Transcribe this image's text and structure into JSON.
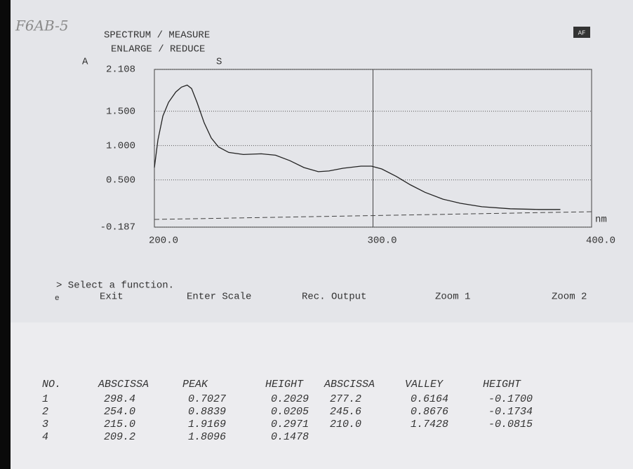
{
  "handwriting": "F6AB-5",
  "header": {
    "line1": "SPECTRUM / MEASURE",
    "line2": "ENLARGE / REDUCE",
    "badge": "AF"
  },
  "chart_data": {
    "type": "line",
    "y_label": "A",
    "x_label": "nm",
    "marker": "S",
    "x": [
      200,
      201.6,
      203.9,
      206.5,
      209.8,
      212.4,
      215,
      217,
      219.5,
      222.8,
      226,
      229.3,
      234,
      240.7,
      248.9,
      255.4,
      262,
      268.4,
      275,
      279.8,
      286.3,
      294.5,
      299.3,
      304,
      310.7,
      317,
      323.8,
      332,
      340,
      349.8,
      362.8,
      375.9,
      385.7
    ],
    "y": [
      0.68,
      1.08,
      1.43,
      1.63,
      1.78,
      1.85,
      1.88,
      1.83,
      1.63,
      1.33,
      1.11,
      0.98,
      0.9,
      0.87,
      0.88,
      0.86,
      0.78,
      0.68,
      0.62,
      0.63,
      0.67,
      0.7,
      0.7,
      0.66,
      0.55,
      0.43,
      0.32,
      0.22,
      0.16,
      0.11,
      0.08,
      0.07,
      0.07
    ],
    "color": "#222222",
    "xlim": [
      200,
      400
    ],
    "xticks": [
      {
        "value": 200,
        "label": "200.0"
      },
      {
        "value": 300,
        "label": "300.0"
      },
      {
        "value": 400,
        "label": "400.0"
      }
    ],
    "ylim": [
      -0.187,
      2.108
    ],
    "yticks": [
      -0.187,
      {
        "value": 0.5,
        "label": "0.500"
      },
      {
        "value": 1,
        "label": "1.000"
      },
      {
        "value": 1.5,
        "label": "1.500"
      },
      2.108
    ],
    "grid": true
  },
  "menu": {
    "prompt": "> Select a function.",
    "key": "e",
    "items": [
      "Exit",
      "Enter Scale",
      "Rec. Output",
      "Zoom 1",
      "Zoom 2"
    ]
  },
  "table": {
    "header": [
      "NO.",
      "ABSCISSA",
      "PEAK",
      "HEIGHT",
      "ABSCISSA",
      "VALLEY",
      "HEIGHT"
    ],
    "rows": [
      [
        "1",
        "298.4",
        "0.7027",
        "0.2029",
        "277.2",
        "0.6164",
        "-0.1700"
      ],
      [
        "2",
        "254.0",
        "0.8839",
        "0.0205",
        "245.6",
        "0.8676",
        "-0.1734"
      ],
      [
        "3",
        "215.0",
        "1.9169",
        "0.2971",
        "210.0",
        "1.7428",
        "-0.0815"
      ],
      [
        "4",
        "209.2",
        "1.8096",
        "0.1478"
      ]
    ]
  }
}
